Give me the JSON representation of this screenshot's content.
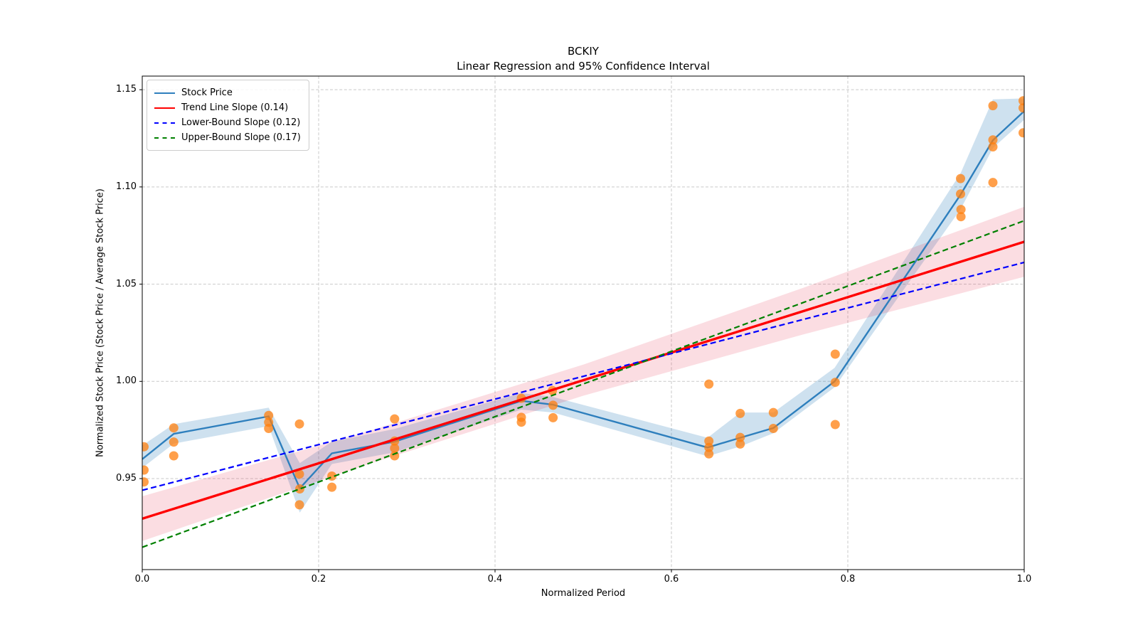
{
  "title": {
    "line1": "BCKIY",
    "line2": "Linear Regression and 95% Confidence Interval"
  },
  "axes": {
    "xlabel": "Normalized Period",
    "ylabel": "Normalized Stock Price (Stock Price / Average Stock Price)"
  },
  "legend": {
    "items": [
      {
        "label": "Stock Price",
        "color": "#2e7fbd",
        "dash": false
      },
      {
        "label": "Trend Line Slope (0.14)",
        "color": "#ff0000",
        "dash": false
      },
      {
        "label": "Lower-Bound Slope (0.12)",
        "color": "#0000ff",
        "dash": true
      },
      {
        "label": "Upper-Bound Slope (0.17)",
        "color": "#008000",
        "dash": true
      }
    ]
  },
  "colors": {
    "stock_line": "#2e7fbd",
    "stock_band": "rgba(31,119,180,0.22)",
    "scatter": "rgba(255,127,14,0.75)",
    "trend_line": "#ff0000",
    "trend_band": "rgba(230,30,60,0.15)",
    "lower_bound": "#0000ff",
    "upper_bound": "#008000",
    "grid": "#c9c9c9",
    "spine": "#000000",
    "background": "#ffffff"
  },
  "chart_data": {
    "type": "line",
    "title": "BCKIY",
    "subtitle": "Linear Regression and 95% Confidence Interval",
    "xlabel": "Normalized Period",
    "ylabel": "Normalized Stock Price (Stock Price / Average Stock Price)",
    "xlim": [
      0,
      1
    ],
    "ylim": [
      0.9032,
      1.157
    ],
    "grid": true,
    "legend_position": "upper-left",
    "x_ticks": {
      "values": [
        0.0,
        0.2,
        0.4,
        0.6,
        0.8,
        1.0
      ],
      "labels": [
        "0.0",
        "0.2",
        "0.4",
        "0.6",
        "0.8",
        "1.0"
      ]
    },
    "y_ticks": {
      "values": [
        0.95,
        1.0,
        1.05,
        1.1,
        1.15
      ],
      "labels": [
        "0.95",
        "1.00",
        "1.05",
        "1.10",
        "1.15"
      ]
    },
    "series": [
      {
        "name": "Stock Price 95% CI band",
        "type": "band",
        "color": "rgba(31,119,180,0.22)",
        "x": [
          0.0,
          0.0357,
          0.1433,
          0.1786,
          0.215,
          0.286,
          0.4298,
          0.4658,
          0.641,
          0.678,
          0.7156,
          0.7851,
          0.9278,
          0.9645,
          1.0
        ],
        "upper": [
          0.967,
          0.978,
          0.9865,
          0.958,
          0.969,
          0.9755,
          0.994,
          0.992,
          0.971,
          0.984,
          0.984,
          1.007,
          1.107,
          1.145,
          1.1455
        ],
        "lower": [
          0.9555,
          0.968,
          0.977,
          0.9325,
          0.9575,
          0.9635,
          0.9855,
          0.984,
          0.9615,
          0.9665,
          0.9733,
          0.997,
          1.0885,
          1.12,
          1.1345
        ]
      },
      {
        "name": "Regression 95% CI band",
        "type": "band",
        "color": "rgba(230,30,60,0.15)",
        "x": [
          0.0,
          0.25,
          0.5,
          0.75,
          1.0
        ],
        "upper": [
          0.9409,
          0.9735,
          1.0086,
          1.0482,
          1.0898
        ],
        "lower": [
          0.9179,
          0.9565,
          0.9926,
          1.0242,
          1.0538
        ]
      },
      {
        "name": "Stock Price",
        "type": "line",
        "color": "#2e7fbd",
        "width": 2.4,
        "dash": null,
        "x": [
          0.0,
          0.0357,
          0.1433,
          0.1786,
          0.215,
          0.286,
          0.4298,
          0.4658,
          0.641,
          0.678,
          0.7156,
          0.7851,
          0.9278,
          0.9645,
          1.0
        ],
        "y": [
          0.96,
          0.973,
          0.982,
          0.945,
          0.963,
          0.969,
          0.99,
          0.988,
          0.966,
          0.971,
          0.976,
          1.0,
          1.096,
          1.124,
          1.139
        ]
      },
      {
        "name": "Stock price observations",
        "type": "scatter",
        "color": "rgba(255,127,14,0.75)",
        "radius": 6.5,
        "points": [
          [
            0.002,
            0.9664
          ],
          [
            0.002,
            0.9544
          ],
          [
            0.002,
            0.9483
          ],
          [
            0.0357,
            0.9761
          ],
          [
            0.0357,
            0.9688
          ],
          [
            0.0357,
            0.9617
          ],
          [
            0.1433,
            0.9825
          ],
          [
            0.1433,
            0.979
          ],
          [
            0.1433,
            0.9758
          ],
          [
            0.1782,
            0.9781
          ],
          [
            0.1782,
            0.9523
          ],
          [
            0.1786,
            0.9447
          ],
          [
            0.1782,
            0.9365
          ],
          [
            0.215,
            0.9513
          ],
          [
            0.215,
            0.9456
          ],
          [
            0.2861,
            0.9807
          ],
          [
            0.2861,
            0.9693
          ],
          [
            0.2861,
            0.9656
          ],
          [
            0.2861,
            0.9617
          ],
          [
            0.4298,
            0.9913
          ],
          [
            0.4298,
            0.9815
          ],
          [
            0.4298,
            0.979
          ],
          [
            0.4651,
            0.9953
          ],
          [
            0.4658,
            0.9877
          ],
          [
            0.4658,
            0.9813
          ],
          [
            0.6425,
            0.9986
          ],
          [
            0.6425,
            0.9693
          ],
          [
            0.6425,
            0.966
          ],
          [
            0.6425,
            0.9627
          ],
          [
            0.678,
            0.9835
          ],
          [
            0.678,
            0.9712
          ],
          [
            0.678,
            0.9678
          ],
          [
            0.7156,
            0.984
          ],
          [
            0.7156,
            0.9758
          ],
          [
            0.7857,
            1.014
          ],
          [
            0.7857,
            0.9995
          ],
          [
            0.7857,
            0.9778
          ],
          [
            0.9278,
            1.1043
          ],
          [
            0.9278,
            1.0964
          ],
          [
            0.9283,
            1.0884
          ],
          [
            0.9283,
            1.0847
          ],
          [
            0.9645,
            1.1418
          ],
          [
            0.9645,
            1.1242
          ],
          [
            0.9645,
            1.1206
          ],
          [
            0.9645,
            1.1023
          ],
          [
            0.9988,
            1.1443
          ],
          [
            0.9988,
            1.1406
          ],
          [
            0.9988,
            1.1278
          ]
        ]
      },
      {
        "name": "Trend Line Slope (0.14)",
        "type": "line",
        "color": "#ff0000",
        "width": 3.4,
        "dash": null,
        "slope": 0.14,
        "x": [
          0,
          1
        ],
        "y": [
          0.9294,
          1.0718
        ]
      },
      {
        "name": "Lower-Bound Slope (0.12)",
        "type": "line",
        "color": "#0000ff",
        "width": 2.2,
        "dash": "8 4.5",
        "slope": 0.12,
        "x": [
          0,
          1
        ],
        "y": [
          0.944,
          1.0612
        ]
      },
      {
        "name": "Upper-Bound Slope (0.17)",
        "type": "line",
        "color": "#008000",
        "width": 2.2,
        "dash": "8 4.5",
        "slope": 0.17,
        "x": [
          0,
          1
        ],
        "y": [
          0.9147,
          1.0826
        ]
      }
    ]
  }
}
